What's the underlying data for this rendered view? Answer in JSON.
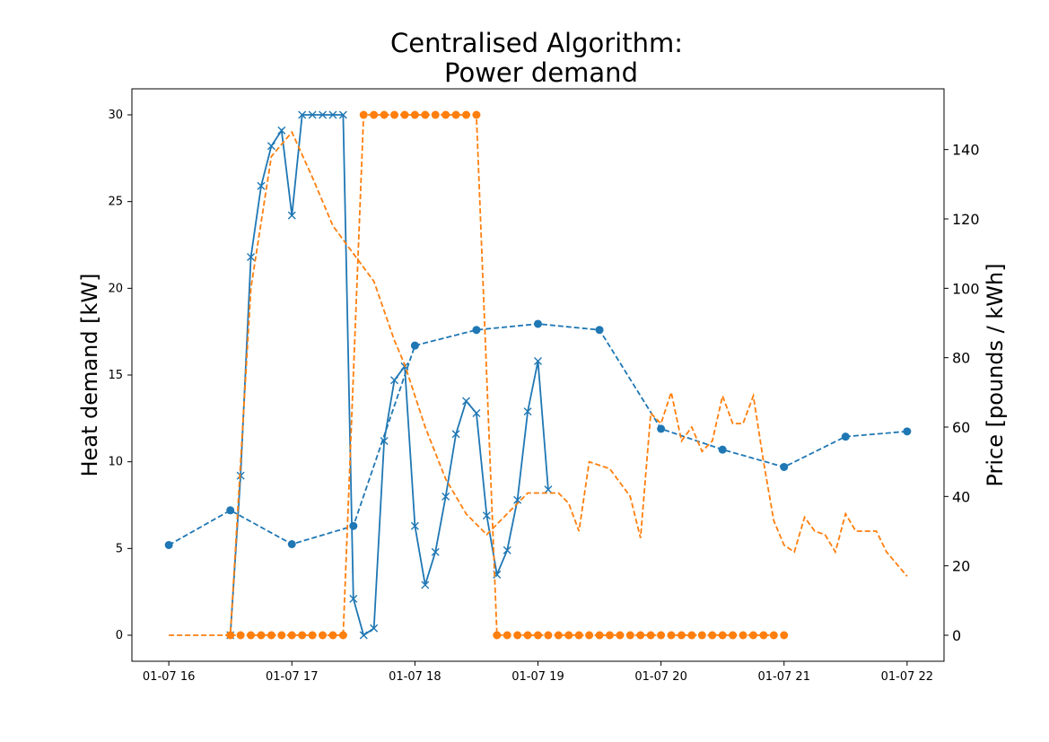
{
  "chart_data": {
    "type": "line",
    "title_line1": "Centralised Algorithm:",
    "title_line2": "Power demand",
    "xlabel": "",
    "ylabel_left": "Heat demand [kW]",
    "ylabel_right": "Price [pounds / kWh]",
    "ylim_left": [
      -1.5,
      31.5
    ],
    "ylim_right": [
      -7.5,
      157.5
    ],
    "xlim": [
      "2023-01-07 15:42",
      "2023-01-07 22:18"
    ],
    "x_ticks": [
      "01-07 16",
      "01-07 17",
      "01-07 18",
      "01-07 19",
      "01-07 20",
      "01-07 21",
      "01-07 22"
    ],
    "y_ticks_left": [
      "0",
      "5",
      "10",
      "15",
      "20",
      "25",
      "30"
    ],
    "y_ticks_right": [
      "0",
      "20",
      "40",
      "60",
      "80",
      "100",
      "120",
      "140"
    ],
    "colors": {
      "blue": "#1f77b4",
      "orange": "#ff7f0e"
    },
    "series": [
      {
        "axis": "left",
        "color": "#1f77b4",
        "style": "dashed",
        "marker": "circle",
        "points": [
          [
            "16:00",
            5.2
          ],
          [
            "16:30",
            7.2
          ],
          [
            "17:00",
            5.25
          ],
          [
            "17:30",
            6.3
          ],
          [
            "18:00",
            16.7
          ],
          [
            "18:30",
            17.6
          ],
          [
            "19:00",
            17.95
          ],
          [
            "19:30",
            17.6
          ],
          [
            "20:00",
            11.9
          ],
          [
            "20:30",
            10.7
          ],
          [
            "21:00",
            9.7
          ],
          [
            "21:30",
            11.45
          ],
          [
            "22:00",
            11.75
          ]
        ]
      },
      {
        "axis": "left",
        "color": "#1f77b4",
        "style": "solid",
        "marker": "x",
        "points": [
          [
            "16:30",
            0.0
          ],
          [
            "16:35",
            9.2
          ],
          [
            "16:40",
            21.8
          ],
          [
            "16:45",
            25.9
          ],
          [
            "16:50",
            28.2
          ],
          [
            "16:55",
            29.1
          ],
          [
            "17:00",
            24.2
          ],
          [
            "17:05",
            30.0
          ],
          [
            "17:10",
            30.0
          ],
          [
            "17:15",
            30.0
          ],
          [
            "17:20",
            30.0
          ],
          [
            "17:25",
            30.0
          ],
          [
            "17:30",
            2.1
          ],
          [
            "17:35",
            0.0
          ],
          [
            "17:40",
            0.4
          ],
          [
            "17:45",
            11.2
          ],
          [
            "17:50",
            14.7
          ],
          [
            "17:55",
            15.5
          ],
          [
            "18:00",
            6.3
          ],
          [
            "18:05",
            2.9
          ],
          [
            "18:10",
            4.8
          ],
          [
            "18:15",
            8.0
          ],
          [
            "18:20",
            11.6
          ],
          [
            "18:25",
            13.5
          ],
          [
            "18:30",
            12.8
          ],
          [
            "18:35",
            6.9
          ],
          [
            "18:40",
            3.5
          ],
          [
            "18:45",
            4.9
          ],
          [
            "18:50",
            7.8
          ],
          [
            "18:55",
            12.9
          ],
          [
            "19:00",
            15.8
          ],
          [
            "19:05",
            8.4
          ]
        ]
      },
      {
        "axis": "right",
        "color": "#ff7f0e",
        "style": "dashed",
        "marker": "none",
        "points": [
          [
            "16:00",
            0
          ],
          [
            "16:30",
            0
          ],
          [
            "16:40",
            100
          ],
          [
            "16:50",
            138
          ],
          [
            "17:00",
            145
          ],
          [
            "17:10",
            132
          ],
          [
            "17:20",
            118
          ],
          [
            "17:30",
            110
          ],
          [
            "17:40",
            102
          ],
          [
            "17:50",
            85
          ],
          [
            "17:55",
            78
          ],
          [
            "18:05",
            60
          ],
          [
            "18:15",
            45
          ],
          [
            "18:25",
            35
          ],
          [
            "18:35",
            29
          ],
          [
            "18:45",
            35
          ],
          [
            "18:55",
            41
          ],
          [
            "19:10",
            41
          ],
          [
            "19:15",
            38
          ],
          [
            "19:20",
            30
          ],
          [
            "19:25",
            50
          ],
          [
            "19:35",
            48
          ],
          [
            "19:45",
            40
          ],
          [
            "19:50",
            28
          ],
          [
            "19:55",
            64
          ],
          [
            "20:00",
            61
          ],
          [
            "20:05",
            70
          ],
          [
            "20:10",
            56
          ],
          [
            "20:15",
            60
          ],
          [
            "20:20",
            53
          ],
          [
            "20:25",
            56
          ],
          [
            "20:30",
            69
          ],
          [
            "20:35",
            61
          ],
          [
            "20:40",
            61
          ],
          [
            "20:45",
            69
          ],
          [
            "20:50",
            50
          ],
          [
            "20:55",
            33
          ],
          [
            "21:00",
            26
          ],
          [
            "21:05",
            24
          ],
          [
            "21:10",
            34
          ],
          [
            "21:15",
            30
          ],
          [
            "21:20",
            29
          ],
          [
            "21:25",
            24
          ],
          [
            "21:30",
            35
          ],
          [
            "21:35",
            30
          ],
          [
            "21:40",
            30
          ],
          [
            "21:45",
            30
          ],
          [
            "21:50",
            24
          ],
          [
            "22:00",
            17
          ]
        ]
      },
      {
        "axis": "right",
        "color": "#ff7f0e",
        "style": "dashed",
        "marker": "circle",
        "points": [
          [
            "16:30",
            0
          ],
          [
            "16:35",
            0
          ],
          [
            "16:40",
            0
          ],
          [
            "16:45",
            0
          ],
          [
            "16:50",
            0
          ],
          [
            "16:55",
            0
          ],
          [
            "17:00",
            0
          ],
          [
            "17:05",
            0
          ],
          [
            "17:10",
            0
          ],
          [
            "17:15",
            0
          ],
          [
            "17:20",
            0
          ],
          [
            "17:25",
            0
          ],
          [
            "17:35",
            150
          ],
          [
            "17:40",
            150
          ],
          [
            "17:45",
            150
          ],
          [
            "17:50",
            150
          ],
          [
            "17:55",
            150
          ],
          [
            "18:00",
            150
          ],
          [
            "18:05",
            150
          ],
          [
            "18:10",
            150
          ],
          [
            "18:15",
            150
          ],
          [
            "18:20",
            150
          ],
          [
            "18:25",
            150
          ],
          [
            "18:30",
            150
          ],
          [
            "18:40",
            0
          ],
          [
            "18:45",
            0
          ],
          [
            "18:50",
            0
          ],
          [
            "18:55",
            0
          ],
          [
            "19:00",
            0
          ],
          [
            "19:05",
            0
          ],
          [
            "19:10",
            0
          ],
          [
            "19:15",
            0
          ],
          [
            "19:20",
            0
          ],
          [
            "19:25",
            0
          ],
          [
            "19:30",
            0
          ],
          [
            "19:35",
            0
          ],
          [
            "19:40",
            0
          ],
          [
            "19:45",
            0
          ],
          [
            "19:50",
            0
          ],
          [
            "19:55",
            0
          ],
          [
            "20:00",
            0
          ],
          [
            "20:05",
            0
          ],
          [
            "20:10",
            0
          ],
          [
            "20:15",
            0
          ],
          [
            "20:20",
            0
          ],
          [
            "20:25",
            0
          ],
          [
            "20:30",
            0
          ],
          [
            "20:35",
            0
          ],
          [
            "20:40",
            0
          ],
          [
            "20:45",
            0
          ],
          [
            "20:50",
            0
          ],
          [
            "20:55",
            0
          ],
          [
            "21:00",
            0
          ]
        ]
      }
    ]
  }
}
